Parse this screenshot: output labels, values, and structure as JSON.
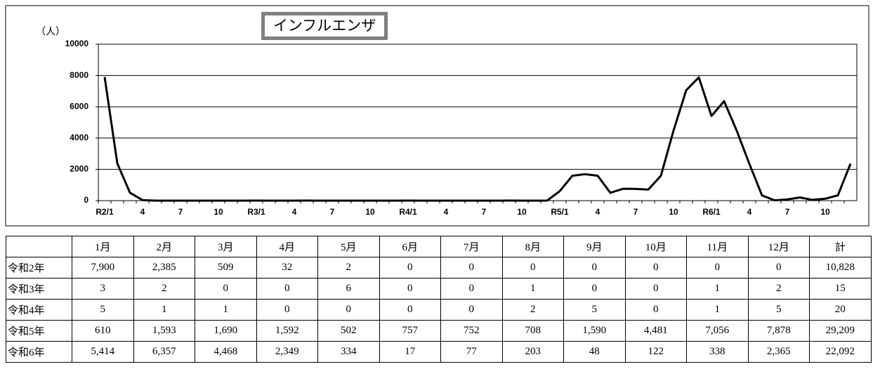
{
  "chart_data": {
    "type": "line",
    "title": "インフルエンザ",
    "y_label": "（人）",
    "categories": [
      "R2/1",
      null,
      null,
      "4",
      null,
      null,
      "7",
      null,
      null,
      "10",
      null,
      null,
      "R3/1",
      null,
      null,
      "4",
      null,
      null,
      "7",
      null,
      null,
      "10",
      null,
      null,
      "R4/1",
      null,
      null,
      "4",
      null,
      null,
      "7",
      null,
      null,
      "10",
      null,
      null,
      "R5/1",
      null,
      null,
      "4",
      null,
      null,
      "7",
      null,
      null,
      "10",
      null,
      null,
      "R6/1",
      null,
      null,
      "4",
      null,
      null,
      "7",
      null,
      null,
      "10",
      null,
      null
    ],
    "series": [
      {
        "name": "インフルエンザ",
        "color": "#000000",
        "values": [
          7900,
          2385,
          509,
          32,
          2,
          0,
          0,
          0,
          0,
          0,
          0,
          0,
          3,
          2,
          0,
          0,
          6,
          0,
          0,
          1,
          0,
          0,
          1,
          2,
          5,
          1,
          1,
          0,
          0,
          0,
          0,
          2,
          5,
          0,
          1,
          5,
          610,
          1593,
          1690,
          1592,
          502,
          757,
          752,
          708,
          1590,
          4481,
          7056,
          7878,
          5414,
          6357,
          4468,
          2349,
          334,
          17,
          77,
          203,
          48,
          122,
          338,
          2365
        ]
      }
    ],
    "ylim": [
      0,
      10000
    ],
    "yticks": [
      0,
      2000,
      4000,
      6000,
      8000,
      10000
    ],
    "grid": true
  },
  "table": {
    "columns": [
      "1月",
      "2月",
      "3月",
      "4月",
      "5月",
      "6月",
      "7月",
      "8月",
      "9月",
      "10月",
      "11月",
      "12月",
      "計"
    ],
    "rows": [
      {
        "label": "令和2年",
        "cells": [
          "7,900",
          "2,385",
          "509",
          "32",
          "2",
          "0",
          "0",
          "0",
          "0",
          "0",
          "0",
          "0",
          "10,828"
        ]
      },
      {
        "label": "令和3年",
        "cells": [
          "3",
          "2",
          "0",
          "0",
          "6",
          "0",
          "0",
          "1",
          "0",
          "0",
          "1",
          "2",
          "15"
        ]
      },
      {
        "label": "令和4年",
        "cells": [
          "5",
          "1",
          "1",
          "0",
          "0",
          "0",
          "0",
          "2",
          "5",
          "0",
          "1",
          "5",
          "20"
        ]
      },
      {
        "label": "令和5年",
        "cells": [
          "610",
          "1,593",
          "1,690",
          "1,592",
          "502",
          "757",
          "752",
          "708",
          "1,590",
          "4,481",
          "7,056",
          "7,878",
          "29,209"
        ]
      },
      {
        "label": "令和6年",
        "cells": [
          "5,414",
          "6,357",
          "4,468",
          "2,349",
          "334",
          "17",
          "77",
          "203",
          "48",
          "122",
          "338",
          "2,365",
          "22,092"
        ]
      }
    ]
  }
}
